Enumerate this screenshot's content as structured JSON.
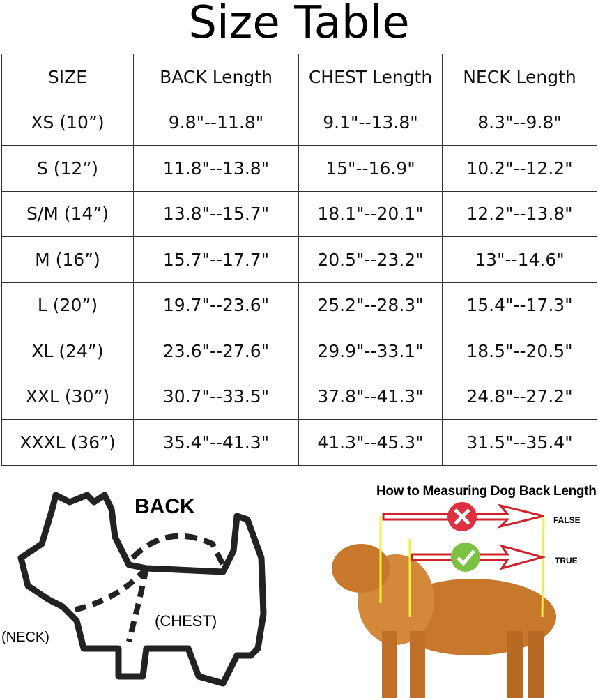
{
  "title": "Size Table",
  "table": {
    "headers": [
      "SIZE",
      "BACK Length",
      "CHEST Length",
      "NECK Length"
    ],
    "rows": [
      [
        "XS (10”)",
        "9.8\"--11.8\"",
        "9.1\"--13.8\"",
        "8.3\"--9.8\""
      ],
      [
        "S (12”)",
        "11.8\"--13.8\"",
        "15\"--16.9\"",
        "10.2\"--12.2\""
      ],
      [
        "S/M (14”)",
        "13.8\"--15.7\"",
        "18.1\"--20.1\"",
        "12.2\"--13.8\""
      ],
      [
        "M (16”)",
        "15.7\"--17.7\"",
        "20.5\"--23.2\"",
        "13\"--14.6\""
      ],
      [
        "L (20”)",
        "19.7\"--23.6\"",
        "25.2\"--28.3\"",
        "15.4\"--17.3\""
      ],
      [
        "XL (24”)",
        "23.6\"--27.6\"",
        "29.9\"--33.1\"",
        "18.5\"--20.5\""
      ],
      [
        "XXL (30”)",
        "30.7\"--33.5\"",
        "37.8\"--41.3\"",
        "24.8\"--27.2\""
      ],
      [
        "XXXL (36”)",
        "35.4\"--41.3\"",
        "41.3\"--45.3\"",
        "31.5\"--35.4\""
      ]
    ]
  },
  "diagram": {
    "back": "BACK",
    "chest": "(CHEST)",
    "neck": "(NECK)"
  },
  "measure": {
    "title": "How to Measuring Dog Back Length",
    "false": "FALSE",
    "true": "TRUE",
    "colors": {
      "arrow": "#d0202a",
      "wrong": "#e03040",
      "right": "#7cc242",
      "guide": "#f0f040",
      "dog": "#c8782a"
    }
  }
}
